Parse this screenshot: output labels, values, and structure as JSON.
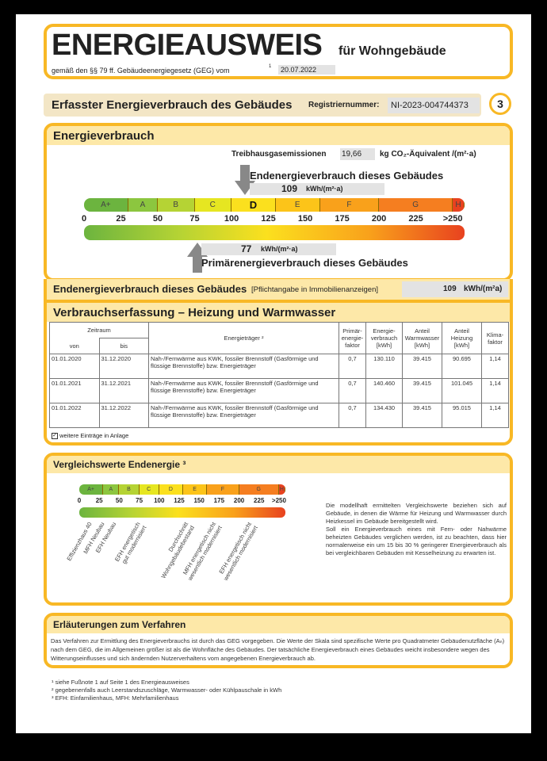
{
  "header": {
    "title": "ENERGIEAUSWEIS",
    "subtitle": "für Wohngebäude",
    "law": "gemäß den §§ 79 ff. Gebäudeenergiegesetz (GEG) vom",
    "law_sup": "1",
    "date": "20.07.2022"
  },
  "reg": {
    "title": "Erfasster Energieverbrauch des Gebäudes",
    "label": "Registriernummer:",
    "number": "NI-2023-004744373",
    "page": "3"
  },
  "verbrauch": {
    "title": "Energieverbrauch",
    "ghg_label": "Treibhausgasemissionen",
    "ghg_value": "19,66",
    "ghg_unit": "kg CO₂-Äquivalent /(m²·a)",
    "end_label": "Endenergieverbrauch dieses Gebäudes",
    "end_value": "109",
    "end_unit": "kWh/(m²·a)",
    "prim_label": "Primärenergieverbrauch dieses Gebäudes",
    "prim_value": "77",
    "prim_unit": "kWh/(m²·a)",
    "end_numeric": 109,
    "prim_numeric": 77,
    "classes": [
      {
        "label": "A+",
        "from": 0,
        "to": 30,
        "color": "#6cb43f"
      },
      {
        "label": "A",
        "from": 30,
        "to": 50,
        "color": "#8cc63f"
      },
      {
        "label": "B",
        "from": 50,
        "to": 75,
        "color": "#b5d334"
      },
      {
        "label": "C",
        "from": 75,
        "to": 100,
        "color": "#e6e621"
      },
      {
        "label": "D",
        "from": 100,
        "to": 130,
        "color": "#fbe01e"
      },
      {
        "label": "E",
        "from": 130,
        "to": 160,
        "color": "#fcc419"
      },
      {
        "label": "F",
        "from": 160,
        "to": 200,
        "color": "#f9a11b"
      },
      {
        "label": "G",
        "from": 200,
        "to": 250,
        "color": "#f57e20"
      },
      {
        "label": "H",
        "from": 250,
        "to": 258,
        "color": "#e8421f"
      }
    ],
    "ticks": [
      "0",
      "25",
      "50",
      "75",
      "100",
      "125",
      "150",
      "175",
      "200",
      "225",
      ">250"
    ]
  },
  "endrow": {
    "label": "Endenergieverbrauch dieses Gebäudes",
    "note": "[Pflichtangabe in Immobilienanzeigen]",
    "value": "109",
    "unit": "kWh/(m²a)"
  },
  "erfassung": {
    "title": "Verbrauchserfassung – Heizung und Warmwasser",
    "headers": {
      "zeitraum": "Zeitraum",
      "von": "von",
      "bis": "bis",
      "traeger": "Energieträger ²",
      "faktor": "Primär-energie-faktor",
      "verbrauch": "Energie-verbrauch [kWh]",
      "ww": "Anteil Warmwasser [kWh]",
      "hz": "Anteil Heizung [kWh]",
      "klima": "Klima-faktor"
    },
    "rows": [
      {
        "von": "01.01.2020",
        "bis": "31.12.2020",
        "traeger": "Nah-/Fernwärme aus KWK, fossiler Brennstoff (Gasförmige und flüssige Brennstoffe) bzw. Energieträger",
        "faktor": "0,7",
        "verbrauch": "130.110",
        "ww": "39.415",
        "hz": "90.695",
        "klima": "1,14"
      },
      {
        "von": "01.01.2021",
        "bis": "31.12.2021",
        "traeger": "Nah-/Fernwärme aus KWK, fossiler Brennstoff (Gasförmige und flüssige Brennstoffe) bzw. Energieträger",
        "faktor": "0,7",
        "verbrauch": "140.460",
        "ww": "39.415",
        "hz": "101.045",
        "klima": "1,14"
      },
      {
        "von": "01.01.2022",
        "bis": "31.12.2022",
        "traeger": "Nah-/Fernwärme aus KWK, fossiler Brennstoff (Gasförmige und flüssige Brennstoffe) bzw. Energieträger",
        "faktor": "0,7",
        "verbrauch": "134.430",
        "ww": "39.415",
        "hz": "95.015",
        "klima": "1,14"
      }
    ],
    "more": "weitere Einträge in Anlage",
    "more_checked": true
  },
  "vergleich": {
    "title": "Vergleichswerte Endenergie ³",
    "refs": [
      {
        "label": "Effizienzhaus 40",
        "v": 10
      },
      {
        "label": "MFH Neubau",
        "v": 25
      },
      {
        "label": "EFH Neubau",
        "v": 40
      },
      {
        "label": "EFH energetisch\ngut modernisiert",
        "v": 70
      },
      {
        "label": "Durchschnitt\nWohngebäudebestand",
        "v": 130
      },
      {
        "label": "MFH energetisch nicht\nwesentlich modernisiert",
        "v": 165
      },
      {
        "label": "EFH energetisch nicht\nwesentlich modernisiert",
        "v": 210
      }
    ],
    "text": "Die modellhaft ermittelten Vergleichswerte beziehen sich auf Gebäude, in denen die Wärme für Heizung und Warmwasser durch Heizkessel im Gebäude bereitgestellt wird.\nSoll ein Energieverbrauch eines mit Fern- oder Nahwärme beheizten Gebäudes verglichen werden, ist zu beachten, dass hier normalerweise ein um 15 bis 30 % geringerer Energieverbrauch als bei vergleichbaren Gebäuden mit Kesselheizung zu erwarten ist."
  },
  "erlaeuterung": {
    "title": "Erläuterungen zum Verfahren",
    "text": "Das Verfahren zur Ermittlung des Energieverbrauchs ist durch das GEG vorgegeben. Die Werte der Skala sind spezifische Werte pro Quadratmeter Gebäudenutzfläche (Aₙ) nach dem GEG, die im Allgemeinen größer ist als die Wohnfläche des Gebäudes. Der tatsächliche Energieverbrauch eines Gebäudes weicht insbesondere wegen des Witterungseinflusses und sich ändernden Nutzerverhaltens vom angegebenen Energieverbrauch ab."
  },
  "footnotes": [
    "¹ siehe Fußnote 1 auf Seite 1 des Energieausweises",
    "² gegebenenfalls auch Leerstandszuschläge, Warmwasser- oder Kühlpauschale in kWh",
    "³ EFH: Einfamilienhaus, MFH: Mehrfamilienhaus"
  ]
}
